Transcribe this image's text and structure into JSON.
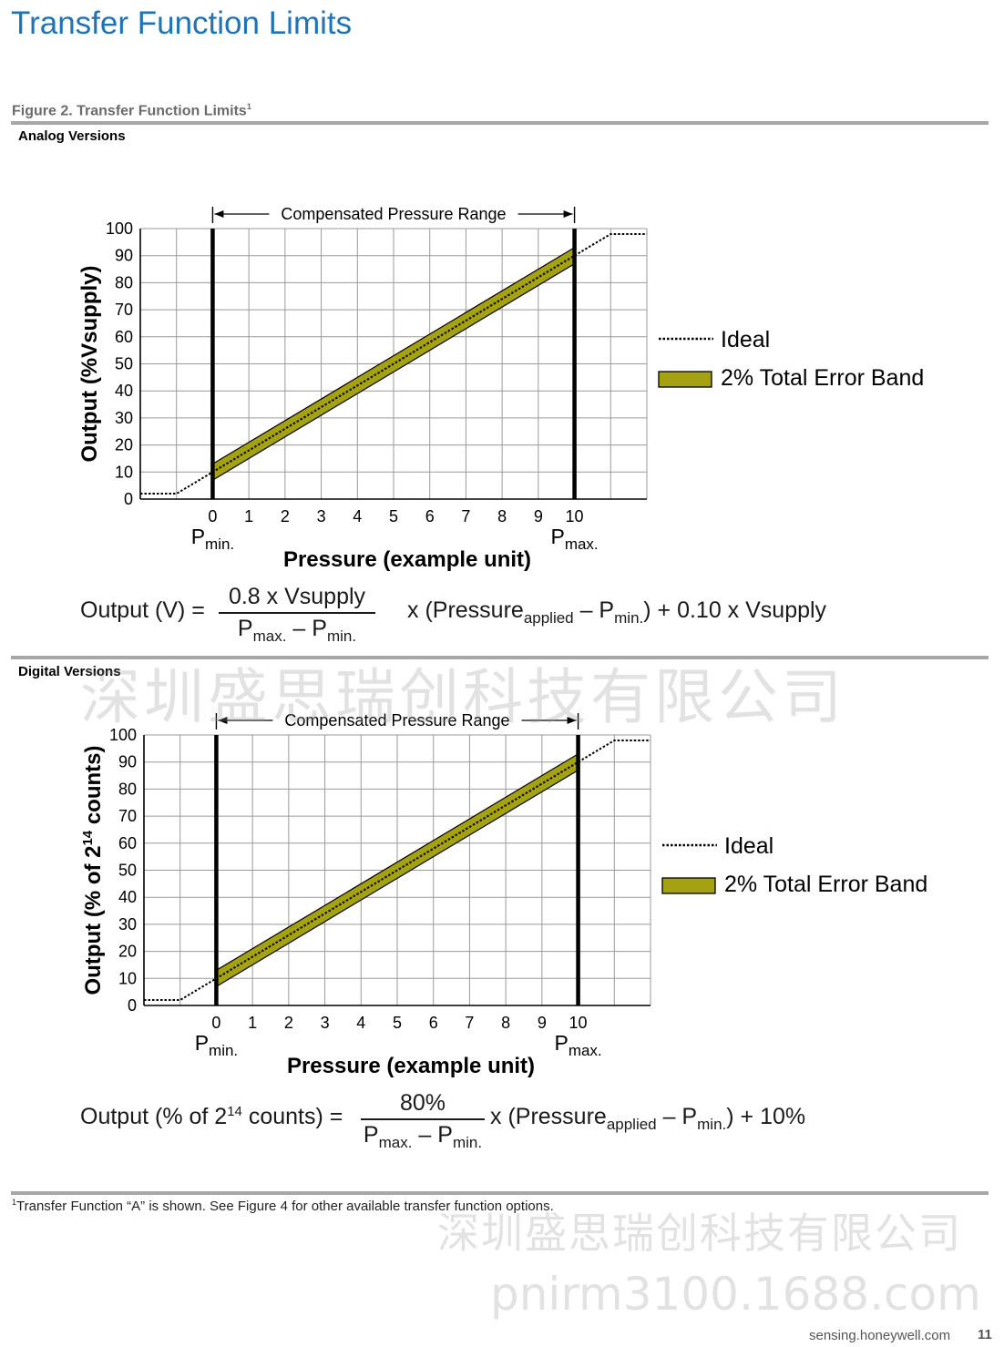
{
  "page": {
    "title": "Transfer Function Limits",
    "figure_caption": "Figure 2. Transfer Function Limits",
    "figure_caption_mark": "1",
    "footnote_mark": "1",
    "footnote": "Transfer Function “A” is shown. See Figure 4 for other available transfer function options.",
    "site": "sensing.honeywell.com",
    "page_number": "11",
    "watermark_cn": "深圳盛思瑞创科技有限公司",
    "watermark_url": "pnirm3100.1688.com"
  },
  "colors": {
    "title": "#1f73b7",
    "band": "#a4a210",
    "rule": "#a7a7a7"
  },
  "sections": [
    {
      "label": "Analog Versions",
      "ylabel_main": "Output (%Vsupply)",
      "ylabel_sup": "",
      "ylabel_tail": "",
      "formula": {
        "lhs": "Output (V) =",
        "numerator": "0.8 x Vsupply",
        "den_p1": "P",
        "den_s1": "max.",
        "den_mid": " – P",
        "den_s2": "min.",
        "x_text": "x (Pressure",
        "applied": "applied",
        "minus_p": " – P",
        "min_sub": "min.",
        "tail": ") + 0.10 x Vsupply"
      }
    },
    {
      "label": "Digital Versions",
      "ylabel_main": "Output (% of 2",
      "ylabel_sup": "14",
      "ylabel_tail": " counts)",
      "formula": {
        "lhs_a": "Output (% of 2",
        "lhs_sup": "14",
        "lhs_b": " counts) =",
        "numerator": "80%",
        "den_p1": "P",
        "den_s1": "max.",
        "den_mid": " – P",
        "den_s2": "min.",
        "x_text": "x (Pressure",
        "applied": "applied",
        "minus_p": " – P",
        "min_sub": "min.",
        "tail": ") + 10%"
      }
    }
  ],
  "chart_data": [
    {
      "type": "line",
      "title": "Analog Versions",
      "xlabel": "Pressure (example unit)",
      "ylabel": "Output (%Vsupply)",
      "x_ticks": [
        0,
        1,
        2,
        3,
        4,
        5,
        6,
        7,
        8,
        9,
        10
      ],
      "y_ticks": [
        0,
        10,
        20,
        30,
        40,
        50,
        60,
        70,
        80,
        90,
        100
      ],
      "xlim": [
        -2,
        12
      ],
      "ylim": [
        0,
        100
      ],
      "grid": true,
      "range_annotation": "Compensated Pressure Range",
      "pmin_label": {
        "p": "P",
        "sub": "min."
      },
      "pmax_label": {
        "p": "P",
        "sub": "max."
      },
      "series": [
        {
          "name": "Ideal",
          "style": "dotted",
          "x": [
            -2,
            -1,
            0,
            10,
            11,
            12
          ],
          "y": [
            2,
            2,
            10,
            90,
            98,
            98
          ]
        },
        {
          "name": "2% Total Error Band",
          "style": "band",
          "x": [
            0,
            10
          ],
          "y_low": [
            7,
            87
          ],
          "y_high": [
            13,
            93
          ]
        }
      ],
      "legend": [
        "Ideal",
        "2% Total Error Band"
      ],
      "legend_position": "right"
    },
    {
      "type": "line",
      "title": "Digital Versions",
      "xlabel": "Pressure (example unit)",
      "ylabel": "Output (% of 214 counts)",
      "x_ticks": [
        0,
        1,
        2,
        3,
        4,
        5,
        6,
        7,
        8,
        9,
        10
      ],
      "y_ticks": [
        0,
        10,
        20,
        30,
        40,
        50,
        60,
        70,
        80,
        90,
        100
      ],
      "xlim": [
        -2,
        12
      ],
      "ylim": [
        0,
        100
      ],
      "grid": true,
      "range_annotation": "Compensated Pressure Range",
      "pmin_label": {
        "p": "P",
        "sub": "min."
      },
      "pmax_label": {
        "p": "P",
        "sub": "max."
      },
      "series": [
        {
          "name": "Ideal",
          "style": "dotted",
          "x": [
            -2,
            -1,
            0,
            10,
            11,
            12
          ],
          "y": [
            2,
            2,
            10,
            90,
            98,
            98
          ]
        },
        {
          "name": "2% Total Error Band",
          "style": "band",
          "x": [
            0,
            10
          ],
          "y_low": [
            7,
            87
          ],
          "y_high": [
            13,
            93
          ]
        }
      ],
      "legend": [
        "Ideal",
        "2% Total Error Band"
      ],
      "legend_position": "right"
    }
  ]
}
